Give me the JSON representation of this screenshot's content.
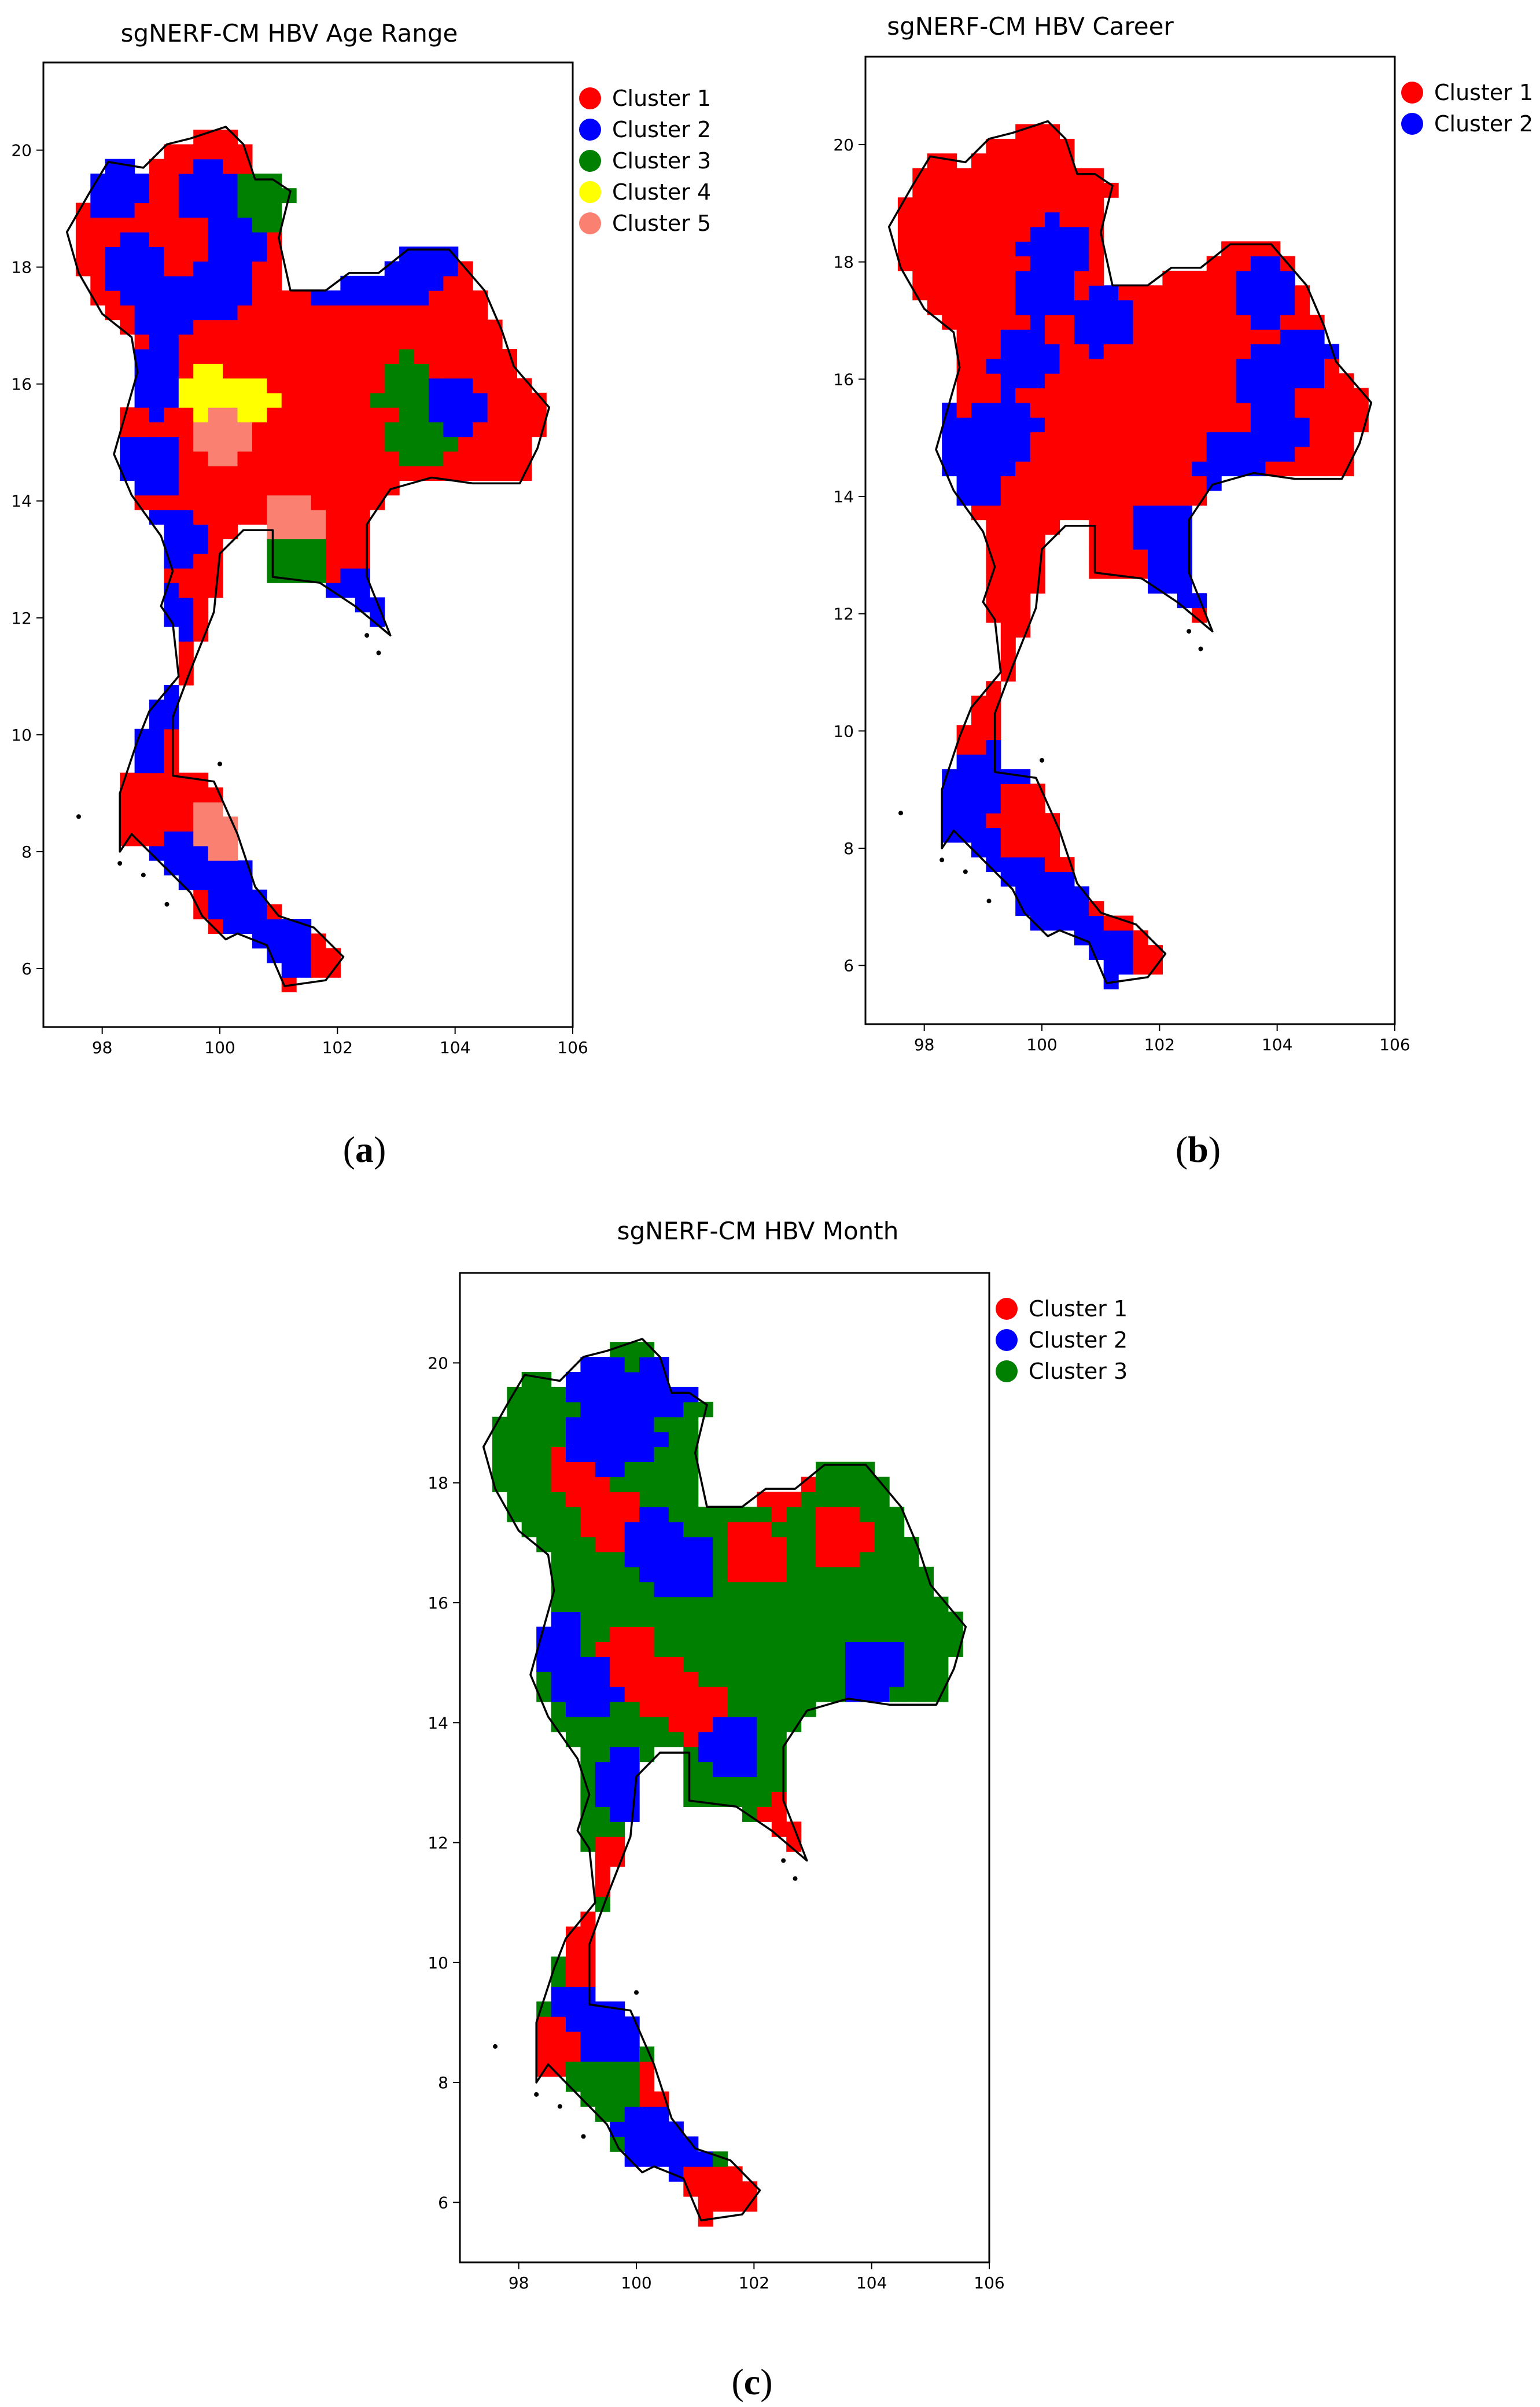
{
  "figure": {
    "panels": [
      {
        "id": "a",
        "title": "sgNERF-CM HBV Age Range",
        "caption_letter": "a",
        "x_ticks": [
          "98",
          "100",
          "102",
          "104",
          "106"
        ],
        "y_ticks": [
          "6",
          "8",
          "10",
          "12",
          "14",
          "16",
          "18",
          "20"
        ],
        "legend": [
          {
            "label": "Cluster 1",
            "color": "#ff0000"
          },
          {
            "label": "Cluster 2",
            "color": "#0000ff"
          },
          {
            "label": "Cluster 3",
            "color": "#008000"
          },
          {
            "label": "Cluster 4",
            "color": "#ffff00"
          },
          {
            "label": "Cluster 5",
            "color": "#fa8072"
          }
        ],
        "dominant_cluster": "Cluster 1"
      },
      {
        "id": "b",
        "title": "sgNERF-CM HBV Career",
        "caption_letter": "b",
        "x_ticks": [
          "98",
          "100",
          "102",
          "104",
          "106"
        ],
        "y_ticks": [
          "6",
          "8",
          "10",
          "12",
          "14",
          "16",
          "18",
          "20"
        ],
        "legend": [
          {
            "label": "Cluster 1",
            "color": "#ff0000"
          },
          {
            "label": "Cluster 2",
            "color": "#0000ff"
          }
        ],
        "dominant_cluster": "Cluster 1"
      },
      {
        "id": "c",
        "title": "sgNERF-CM HBV Month",
        "caption_letter": "c",
        "x_ticks": [
          "98",
          "100",
          "102",
          "104",
          "106"
        ],
        "y_ticks": [
          "6",
          "8",
          "10",
          "12",
          "14",
          "16",
          "18",
          "20"
        ],
        "legend": [
          {
            "label": "Cluster 1",
            "color": "#ff0000"
          },
          {
            "label": "Cluster 2",
            "color": "#0000ff"
          },
          {
            "label": "Cluster 3",
            "color": "#008000"
          }
        ],
        "dominant_cluster": "Cluster 3"
      }
    ]
  }
}
